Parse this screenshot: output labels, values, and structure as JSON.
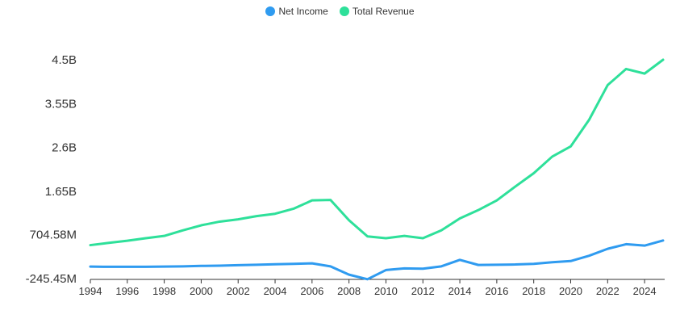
{
  "chart_data": {
    "type": "line",
    "title": "",
    "xlabel": "",
    "ylabel": "",
    "legend_position": "top-center",
    "grid": false,
    "x": [
      1994,
      1995,
      1996,
      1997,
      1998,
      1999,
      2000,
      2001,
      2002,
      2003,
      2004,
      2005,
      2006,
      2007,
      2008,
      2009,
      2010,
      2011,
      2012,
      2013,
      2014,
      2015,
      2016,
      2017,
      2018,
      2019,
      2020,
      2021,
      2022,
      2023,
      2024,
      2025
    ],
    "x_ticks": [
      "1994",
      "1996",
      "1998",
      "2000",
      "2002",
      "2004",
      "2006",
      "2008",
      "2010",
      "2012",
      "2014",
      "2016",
      "2018",
      "2020",
      "2022",
      "2024"
    ],
    "y_ticks": [
      {
        "value": -245450000,
        "label": "-245.45M"
      },
      {
        "value": 704580000,
        "label": "704.58M"
      },
      {
        "value": 1650000000,
        "label": "1.65B"
      },
      {
        "value": 2600000000,
        "label": "2.6B"
      },
      {
        "value": 3550000000,
        "label": "3.55B"
      },
      {
        "value": 4500000000,
        "label": "4.5B"
      }
    ],
    "ylim": [
      -245450000,
      4500000000
    ],
    "series": [
      {
        "name": "Net Income",
        "color": "#2f9bf0",
        "values": [
          15000000,
          10000000,
          10000000,
          10000000,
          15000000,
          20000000,
          30000000,
          35000000,
          45000000,
          55000000,
          65000000,
          75000000,
          85000000,
          20000000,
          -160000000,
          -260000000,
          -60000000,
          -25000000,
          -30000000,
          20000000,
          160000000,
          50000000,
          55000000,
          60000000,
          75000000,
          110000000,
          135000000,
          250000000,
          400000000,
          500000000,
          470000000,
          580000000
        ]
      },
      {
        "name": "Total Revenue",
        "color": "#2ee09a",
        "values": [
          480000000,
          530000000,
          575000000,
          630000000,
          680000000,
          800000000,
          910000000,
          990000000,
          1040000000,
          1110000000,
          1160000000,
          1270000000,
          1450000000,
          1460000000,
          1020000000,
          670000000,
          630000000,
          680000000,
          630000000,
          800000000,
          1060000000,
          1240000000,
          1450000000,
          1750000000,
          2040000000,
          2400000000,
          2620000000,
          3200000000,
          3950000000,
          4300000000,
          4200000000,
          4500000000
        ]
      }
    ]
  }
}
